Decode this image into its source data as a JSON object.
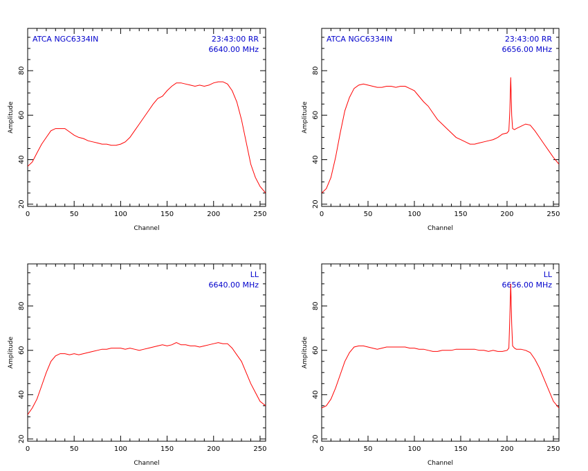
{
  "chart_data": [
    {
      "type": "line",
      "panel": "top-left",
      "title_left": "ATCA  NGC6334IN",
      "title_right": "23:43:00  RR",
      "subtitle_right": "6640.00  MHz",
      "xlabel": "Channel",
      "ylabel": "Amplitude",
      "xlim": [
        0,
        256
      ],
      "ylim": [
        19,
        99
      ],
      "xticks": [
        0,
        50,
        100,
        150,
        200,
        250
      ],
      "yticks": [
        20,
        40,
        60,
        80
      ],
      "color": "#ff0000",
      "series": [
        {
          "x": [
            0,
            5,
            10,
            15,
            20,
            25,
            30,
            35,
            40,
            45,
            50,
            55,
            60,
            65,
            70,
            75,
            80,
            85,
            90,
            95,
            100,
            105,
            110,
            115,
            120,
            125,
            130,
            135,
            140,
            145,
            150,
            155,
            160,
            165,
            170,
            175,
            180,
            185,
            190,
            195,
            200,
            205,
            210,
            215,
            220,
            225,
            230,
            235,
            240,
            245,
            250,
            256
          ],
          "y": [
            37,
            39,
            43,
            47,
            50,
            53,
            54,
            54,
            54,
            52.5,
            51,
            50,
            49.5,
            48.5,
            48,
            47.5,
            47,
            47,
            46.5,
            46.5,
            47,
            48,
            50,
            53,
            56,
            59,
            62,
            65,
            67.5,
            68.5,
            71,
            73,
            74.5,
            74.5,
            74,
            73.5,
            73,
            73.5,
            73,
            73.5,
            74.5,
            75,
            75,
            74,
            71,
            66,
            58,
            48,
            38,
            32,
            28,
            25
          ]
        }
      ]
    },
    {
      "type": "line",
      "panel": "top-right",
      "title_left": "ATCA  NGC6334IN",
      "title_right": "23:43:00  RR",
      "subtitle_right": "6656.00  MHz",
      "xlabel": "Channel",
      "ylabel": "Amplitude",
      "xlim": [
        0,
        256
      ],
      "ylim": [
        19,
        99
      ],
      "xticks": [
        0,
        50,
        100,
        150,
        200,
        250
      ],
      "yticks": [
        20,
        40,
        60,
        80
      ],
      "color": "#ff0000",
      "series": [
        {
          "x": [
            0,
            5,
            10,
            15,
            20,
            25,
            30,
            35,
            40,
            45,
            50,
            55,
            60,
            65,
            70,
            75,
            80,
            85,
            90,
            95,
            100,
            105,
            110,
            115,
            120,
            125,
            130,
            135,
            140,
            145,
            150,
            155,
            160,
            165,
            170,
            175,
            180,
            185,
            190,
            195,
            200,
            202,
            203,
            204,
            205,
            206,
            208,
            210,
            215,
            220,
            225,
            230,
            235,
            240,
            245,
            250,
            256
          ],
          "y": [
            25,
            27,
            32,
            41,
            52,
            62,
            68,
            72,
            73.5,
            74,
            73.5,
            73,
            72.5,
            72.5,
            73,
            73,
            72.5,
            73,
            73,
            72,
            71,
            68.5,
            66,
            64,
            61,
            58,
            56,
            54,
            52,
            50,
            49,
            48,
            47,
            47,
            47.5,
            48,
            48.5,
            49,
            50,
            51.5,
            52,
            53,
            62,
            77,
            60,
            54,
            53.5,
            54,
            55,
            56,
            55.5,
            53,
            50,
            47,
            44,
            41,
            38
          ]
        }
      ]
    },
    {
      "type": "line",
      "panel": "bottom-left",
      "title_left": "",
      "title_right": "LL",
      "subtitle_right": "6640.00  MHz",
      "xlabel": "Channel",
      "ylabel": "Amplitude",
      "xlim": [
        0,
        256
      ],
      "ylim": [
        19,
        99
      ],
      "xticks": [
        0,
        50,
        100,
        150,
        200,
        250
      ],
      "yticks": [
        20,
        40,
        60,
        80
      ],
      "color": "#ff0000",
      "series": [
        {
          "x": [
            0,
            5,
            10,
            15,
            20,
            25,
            30,
            35,
            40,
            45,
            50,
            55,
            60,
            65,
            70,
            75,
            80,
            85,
            90,
            95,
            100,
            105,
            110,
            115,
            120,
            125,
            130,
            135,
            140,
            145,
            150,
            155,
            160,
            165,
            170,
            175,
            180,
            185,
            190,
            195,
            200,
            205,
            210,
            215,
            220,
            225,
            230,
            235,
            240,
            245,
            250,
            256
          ],
          "y": [
            31,
            34,
            38,
            44,
            50,
            55,
            57.5,
            58.5,
            58.5,
            58,
            58.5,
            58,
            58.5,
            59,
            59.5,
            60,
            60.5,
            60.5,
            61,
            61,
            61,
            60.5,
            61,
            60.5,
            60,
            60.5,
            61,
            61.5,
            62,
            62.5,
            62,
            62.5,
            63.5,
            62.5,
            62.5,
            62,
            62,
            61.5,
            62,
            62.5,
            63,
            63.5,
            63,
            63,
            61,
            58,
            55,
            50,
            45,
            41,
            37,
            35
          ]
        }
      ]
    },
    {
      "type": "line",
      "panel": "bottom-right",
      "title_left": "",
      "title_right": "LL",
      "subtitle_right": "6656.00  MHz",
      "xlabel": "Channel",
      "ylabel": "Amplitude",
      "xlim": [
        0,
        256
      ],
      "ylim": [
        19,
        99
      ],
      "xticks": [
        0,
        50,
        100,
        150,
        200,
        250
      ],
      "yticks": [
        20,
        40,
        60,
        80
      ],
      "color": "#ff0000",
      "series": [
        {
          "x": [
            0,
            5,
            10,
            15,
            20,
            25,
            30,
            35,
            40,
            45,
            50,
            55,
            60,
            65,
            70,
            75,
            80,
            85,
            90,
            95,
            100,
            105,
            110,
            115,
            120,
            125,
            130,
            135,
            140,
            145,
            150,
            155,
            160,
            165,
            170,
            175,
            180,
            185,
            190,
            195,
            200,
            202,
            203,
            204,
            205,
            206,
            208,
            210,
            215,
            220,
            225,
            230,
            235,
            240,
            245,
            250,
            256
          ],
          "y": [
            34,
            35,
            38,
            43,
            49,
            55,
            59,
            61.5,
            62,
            62,
            61.5,
            61,
            60.5,
            61,
            61.5,
            61.5,
            61.5,
            61.5,
            61.5,
            61,
            61,
            60.5,
            60.5,
            60,
            59.5,
            59.5,
            60,
            60,
            60,
            60.5,
            60.5,
            60.5,
            60.5,
            60.5,
            60,
            60,
            59.5,
            60,
            59.5,
            59.5,
            60,
            61,
            75,
            90,
            72,
            62,
            61,
            60.5,
            60.5,
            60,
            59,
            56,
            52,
            47,
            42,
            37,
            34
          ]
        }
      ]
    }
  ]
}
